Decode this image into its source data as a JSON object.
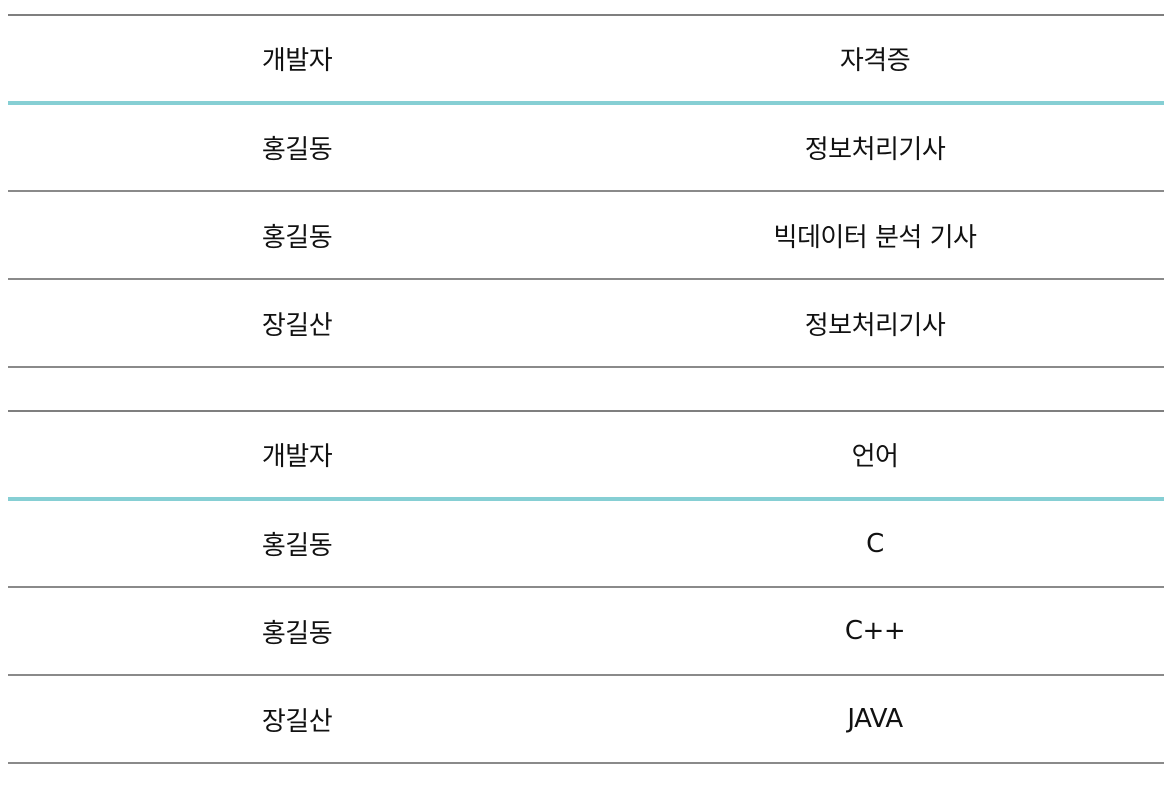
{
  "tables": [
    {
      "headers": [
        "개발자",
        "자격증"
      ],
      "rows": [
        [
          "홍길동",
          "정보처리기사"
        ],
        [
          "홍길동",
          "빅데이터 분석 기사"
        ],
        [
          "장길산",
          "정보처리기사"
        ]
      ]
    },
    {
      "headers": [
        "개발자",
        "언어"
      ],
      "rows": [
        [
          "홍길동",
          "C"
        ],
        [
          "홍길동",
          "C++"
        ],
        [
          "장길산",
          "JAVA"
        ]
      ]
    }
  ],
  "colors": {
    "header_underline": "#86cfd4",
    "row_border": "#8a8a8a",
    "text": "#111111"
  }
}
